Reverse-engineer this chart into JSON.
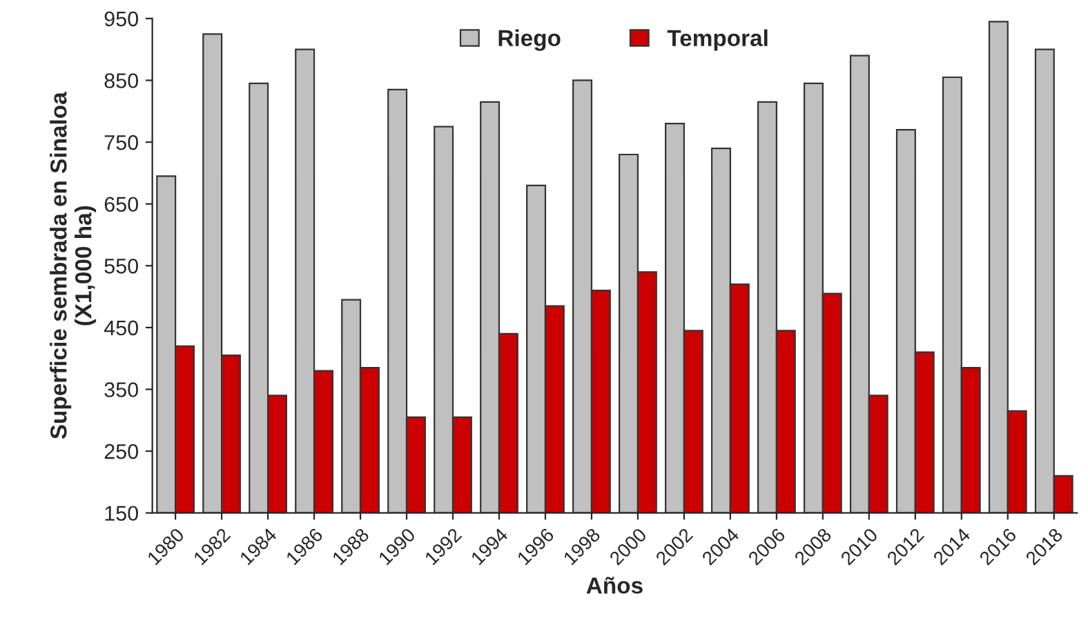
{
  "chart_data": {
    "type": "bar",
    "xlabel": "Años",
    "ylabel": "Superficie sembrada en Sinaloa\n(X1,000 ha)",
    "categories": [
      "1980",
      "1982",
      "1984",
      "1986",
      "1988",
      "1990",
      "1992",
      "1994",
      "1996",
      "1998",
      "2000",
      "2002",
      "2004",
      "2006",
      "2008",
      "2010",
      "2012",
      "2014",
      "2016",
      "2018"
    ],
    "series": [
      {
        "name": "Riego",
        "color": "#c0c0c0",
        "values": [
          695,
          925,
          845,
          900,
          495,
          835,
          775,
          815,
          680,
          850,
          730,
          780,
          740,
          815,
          845,
          890,
          770,
          855,
          945,
          900
        ]
      },
      {
        "name": "Temporal",
        "color": "#cc0000",
        "values": [
          420,
          405,
          340,
          380,
          385,
          305,
          305,
          440,
          485,
          510,
          540,
          445,
          520,
          445,
          505,
          340,
          410,
          385,
          315,
          210
        ]
      }
    ],
    "ylim": [
      150,
      950
    ],
    "yticks": [
      150,
      250,
      350,
      450,
      550,
      650,
      750,
      850,
      950
    ],
    "grid": false,
    "legend": "top"
  }
}
